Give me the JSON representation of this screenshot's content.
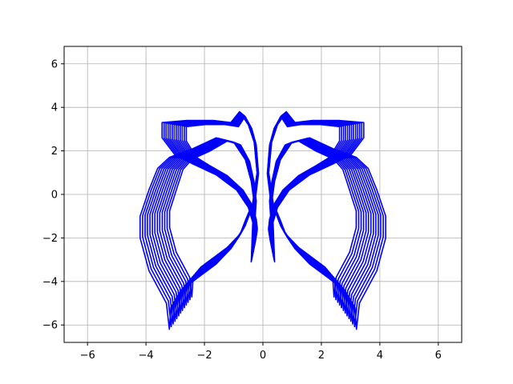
{
  "chart_data": {
    "type": "line",
    "title": "",
    "xlabel": "",
    "ylabel": "",
    "xlim": [
      -6.8,
      6.8
    ],
    "ylim": [
      -6.8,
      6.8
    ],
    "xticks": [
      -6,
      -4,
      -2,
      0,
      2,
      4,
      6
    ],
    "yticks": [
      -6,
      -4,
      -2,
      0,
      2,
      4,
      6
    ],
    "grid": true,
    "line_color": "#0000ff",
    "family": {
      "description_of_sweep": "nested butterfly-shaped polylines, each a scaled copy of the base outline",
      "scales": [
        0.76,
        0.78,
        0.8,
        0.82,
        0.84,
        0.86,
        0.88,
        0.9,
        0.92,
        0.94,
        0.96,
        0.98,
        1.0
      ],
      "base_right_half": [
        [
          0.25,
          -2.1
        ],
        [
          0.3,
          -1.5
        ],
        [
          0.5,
          -0.6
        ],
        [
          0.9,
          0.2
        ],
        [
          1.6,
          0.9
        ],
        [
          2.4,
          1.4
        ],
        [
          3.0,
          1.8
        ],
        [
          3.45,
          2.6
        ],
        [
          3.45,
          3.3
        ],
        [
          2.6,
          3.4
        ],
        [
          1.7,
          3.4
        ],
        [
          1.1,
          3.3
        ],
        [
          0.8,
          3.8
        ],
        [
          0.5,
          3.2
        ],
        [
          0.3,
          2.4
        ],
        [
          0.2,
          1.0
        ],
        [
          0.35,
          -0.4
        ],
        [
          0.6,
          -1.2
        ],
        [
          0.8,
          -1.9
        ],
        [
          1.1,
          -2.5
        ],
        [
          1.6,
          -3.2
        ],
        [
          2.2,
          -3.8
        ],
        [
          2.8,
          -4.4
        ],
        [
          3.15,
          -5.2
        ],
        [
          3.2,
          -6.2
        ],
        [
          3.3,
          -5.0
        ],
        [
          3.9,
          -3.5
        ],
        [
          4.2,
          -2.0
        ],
        [
          4.2,
          -1.0
        ],
        [
          3.9,
          0.2
        ],
        [
          3.6,
          1.2
        ],
        [
          3.2,
          1.7
        ],
        [
          2.4,
          2.1
        ],
        [
          1.6,
          2.6
        ],
        [
          1.0,
          2.4
        ],
        [
          0.6,
          1.6
        ],
        [
          0.4,
          0.6
        ],
        [
          0.3,
          -0.4
        ],
        [
          0.35,
          -1.4
        ],
        [
          0.4,
          -3.1
        ],
        [
          0.25,
          -2.1
        ]
      ],
      "base_left_half_mirrors_right": true
    }
  }
}
